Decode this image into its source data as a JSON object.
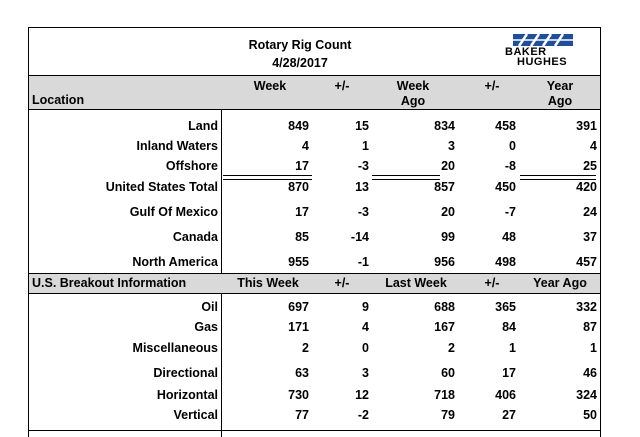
{
  "header": {
    "title": "Rotary Rig Count",
    "date": "4/28/2017",
    "logo_line1": "BAKER",
    "logo_line2": "HUGHES",
    "location_label": "Location",
    "col_week": "Week",
    "col_pm1": "+/-",
    "col_week_ago": "Week\nAgo",
    "col_pm2": "+/-",
    "col_year_ago": "Year\nAgo"
  },
  "rows": [
    {
      "label": "Land",
      "week": "849",
      "pm1": "15",
      "week_ago": "834",
      "pm2": "458",
      "year_ago": "391"
    },
    {
      "label": "Inland Waters",
      "week": "4",
      "pm1": "1",
      "week_ago": "3",
      "pm2": "0",
      "year_ago": "4"
    },
    {
      "label": "Offshore",
      "week": "17",
      "pm1": "-3",
      "week_ago": "20",
      "pm2": "-8",
      "year_ago": "25"
    },
    {
      "label": "United States Total",
      "week": "870",
      "pm1": "13",
      "week_ago": "857",
      "pm2": "450",
      "year_ago": "420"
    },
    {
      "label": "Gulf Of Mexico",
      "week": "17",
      "pm1": "-3",
      "week_ago": "20",
      "pm2": "-7",
      "year_ago": "24"
    },
    {
      "label": "Canada",
      "week": "85",
      "pm1": "-14",
      "week_ago": "99",
      "pm2": "48",
      "year_ago": "37"
    },
    {
      "label": "North America",
      "week": "955",
      "pm1": "-1",
      "week_ago": "956",
      "pm2": "498",
      "year_ago": "457"
    }
  ],
  "breakout": {
    "label": "U.S. Breakout Information",
    "col_this_week": "This Week",
    "col_pm1": "+/-",
    "col_last_week": "Last Week",
    "col_pm2": "+/-",
    "col_year_ago": "Year Ago",
    "rows": [
      {
        "label": "Oil",
        "week": "697",
        "pm1": "9",
        "week_ago": "688",
        "pm2": "365",
        "year_ago": "332"
      },
      {
        "label": "Gas",
        "week": "171",
        "pm1": "4",
        "week_ago": "167",
        "pm2": "84",
        "year_ago": "87"
      },
      {
        "label": "Miscellaneous",
        "week": "2",
        "pm1": "0",
        "week_ago": "2",
        "pm2": "1",
        "year_ago": "1"
      },
      {
        "label": "Directional",
        "week": "63",
        "pm1": "3",
        "week_ago": "60",
        "pm2": "17",
        "year_ago": "46"
      },
      {
        "label": "Horizontal",
        "week": "730",
        "pm1": "12",
        "week_ago": "718",
        "pm2": "406",
        "year_ago": "324"
      },
      {
        "label": "Vertical",
        "week": "77",
        "pm1": "-2",
        "week_ago": "79",
        "pm2": "27",
        "year_ago": "50"
      }
    ]
  },
  "colors": {
    "logo_blue": "#1f4e9a",
    "shade": "#d9d9d9"
  }
}
